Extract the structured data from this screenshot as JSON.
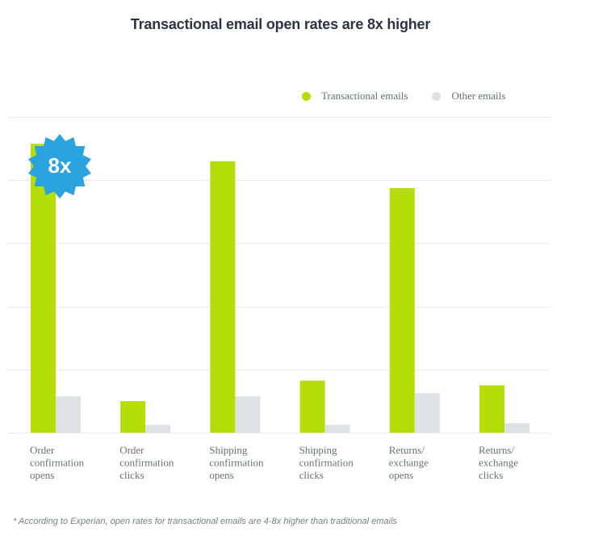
{
  "colors": {
    "transactional": "#b5dd08",
    "other": "#dfe2e5",
    "badge": "#2aa3df",
    "grid": "#e8e9eb",
    "tick_text": "#6a7078"
  },
  "badge": {
    "text": "8x",
    "icon": "starburst-badge-icon"
  },
  "chart_data": {
    "type": "bar",
    "title": "Transactional email open rates are 8x higher",
    "xlabel": "",
    "ylabel": "",
    "categories": [
      [
        "Order",
        "confirmation",
        "opens"
      ],
      [
        "Order",
        "confirmation",
        "clicks"
      ],
      [
        "Shipping",
        "confirmation",
        "opens"
      ],
      [
        "Shipping",
        "confirmation",
        "clicks"
      ],
      [
        "Returns/",
        "exchange",
        "opens"
      ],
      [
        "Returns/",
        "exchange",
        "clicks"
      ]
    ],
    "series": [
      {
        "name": "Transactional emails",
        "values": [
          91.5,
          10,
          86,
          16.5,
          77.5,
          15
        ]
      },
      {
        "name": "Other emails",
        "values": [
          11.5,
          2.5,
          11.5,
          2.5,
          12.5,
          3
        ]
      }
    ],
    "ylim": [
      0,
      100
    ],
    "grid": true,
    "legend_position": "top-right"
  },
  "footnote": "* According to Experian, open rates for transactional emails are 4-8x higher than traditional emails"
}
